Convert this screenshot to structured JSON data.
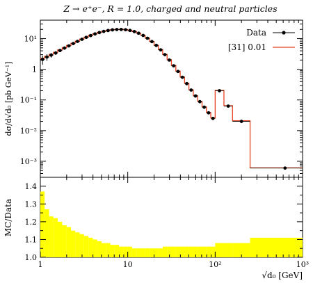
{
  "chart_data": [
    {
      "type": "line",
      "title": "Z → e⁺e⁻, R = 1.0, charged and neutral particles",
      "xlabel": "√d₀ [GeV]",
      "ylabel": "dσ/d√d₀ [pb GeV⁻¹]",
      "xscale": "log",
      "yscale": "log",
      "xlim": [
        1,
        1000
      ],
      "ylim": [
        0.0003,
        40
      ],
      "legend_position": "top-right",
      "legend": [
        {
          "label": "Data",
          "color": "#000000",
          "marker": "point-with-errorbar"
        },
        {
          "label": "[31] 0.01",
          "color": "#e8411f",
          "marker": "step-line"
        }
      ],
      "x_ticks": [
        {
          "value": 1,
          "label": "1"
        },
        {
          "value": 10,
          "label": "10"
        },
        {
          "value": 100,
          "label": "10²"
        },
        {
          "value": 1000,
          "label": "10³"
        }
      ],
      "y_ticks": [
        {
          "value": 0.001,
          "label": "10⁻³"
        },
        {
          "value": 0.01,
          "label": "10⁻²"
        },
        {
          "value": 0.1,
          "label": "10⁻¹"
        },
        {
          "value": 1,
          "label": "1"
        },
        {
          "value": 10,
          "label": "10¹"
        }
      ],
      "bin_edges": [
        1.0,
        1.12,
        1.26,
        1.41,
        1.58,
        1.78,
        2.0,
        2.24,
        2.51,
        2.82,
        3.16,
        3.55,
        3.98,
        4.47,
        5.01,
        5.62,
        6.31,
        7.08,
        7.94,
        8.91,
        10.0,
        11.2,
        12.6,
        14.1,
        15.8,
        17.8,
        20.0,
        22.4,
        25.1,
        28.2,
        31.6,
        35.5,
        39.8,
        44.7,
        50.1,
        56.2,
        63.1,
        70.8,
        79.4,
        89.1,
        100.0,
        126.0,
        158.0,
        251.0,
        1000.0
      ],
      "series": [
        {
          "name": "Data",
          "x": [
            1.06,
            1.19,
            1.33,
            1.5,
            1.68,
            1.89,
            2.12,
            2.38,
            2.66,
            2.99,
            3.35,
            3.76,
            4.22,
            4.73,
            5.31,
            5.96,
            6.68,
            7.5,
            8.41,
            9.44,
            10.6,
            11.9,
            13.3,
            15.0,
            16.8,
            18.9,
            21.2,
            23.8,
            26.6,
            29.9,
            33.5,
            37.6,
            42.2,
            47.3,
            53.1,
            59.6,
            66.8,
            75.0,
            84.1,
            94.4,
            112.0,
            141.0,
            200.0,
            630.0
          ],
          "y": [
            2.1,
            2.5,
            2.9,
            3.4,
            4.1,
            4.9,
            5.8,
            6.9,
            8.1,
            9.5,
            11.0,
            12.6,
            14.2,
            15.8,
            17.2,
            18.4,
            19.3,
            19.8,
            19.9,
            19.5,
            18.5,
            17.0,
            15.0,
            12.7,
            10.3,
            8.0,
            6.0,
            4.3,
            3.0,
            2.0,
            1.3,
            0.85,
            0.55,
            0.34,
            0.21,
            0.135,
            0.088,
            0.058,
            0.038,
            0.025,
            0.2,
            0.063,
            0.02,
            0.0006
          ],
          "y_err": [
            0.7,
            0.6,
            0.5,
            0.45,
            0.4,
            0.35,
            0.35,
            0.35,
            0.35,
            0.35,
            0.35,
            0.35,
            0.35,
            0.35,
            0.35,
            0.35,
            0.35,
            0.35,
            0.35,
            0.35,
            0.35,
            0.35,
            0.35,
            0.35,
            0.3,
            0.3,
            0.25,
            0.2,
            0.15,
            0.1,
            0.06,
            0.04,
            0.025,
            0.015,
            0.01,
            0.006,
            0.004,
            0.003,
            0.002,
            0.0015,
            0.01,
            0.004,
            0.001,
            4e-05
          ]
        },
        {
          "name": "[31] 0.01",
          "step_values": [
            2.3,
            2.7,
            3.1,
            3.6,
            4.3,
            5.1,
            6.0,
            7.1,
            8.3,
            9.7,
            11.2,
            12.8,
            14.4,
            16.0,
            17.4,
            18.6,
            19.5,
            20.0,
            20.1,
            19.7,
            18.6,
            17.1,
            15.1,
            12.8,
            10.4,
            8.1,
            6.1,
            4.4,
            3.05,
            2.05,
            1.33,
            0.87,
            0.56,
            0.35,
            0.215,
            0.138,
            0.09,
            0.06,
            0.039,
            0.026,
            0.205,
            0.065,
            0.021,
            0.00061
          ]
        }
      ]
    },
    {
      "type": "area",
      "ylabel": "MC/Data",
      "xlabel": "√d₀ [GeV]",
      "xscale": "log",
      "xlim": [
        1,
        1000
      ],
      "ylim": [
        1.0,
        1.45
      ],
      "x_ticks": [
        {
          "value": 1,
          "label": "1"
        },
        {
          "value": 10,
          "label": "10"
        },
        {
          "value": 100,
          "label": "10²"
        },
        {
          "value": 1000,
          "label": "10³"
        }
      ],
      "y_ticks": [
        {
          "value": 1.0,
          "label": "1.0"
        },
        {
          "value": 1.1,
          "label": "1.1"
        },
        {
          "value": 1.2,
          "label": "1.2"
        },
        {
          "value": 1.3,
          "label": "1.3"
        },
        {
          "value": 1.4,
          "label": "1.4"
        }
      ],
      "band_color": "#ffff00",
      "band_edges": [
        1.0,
        1.12,
        1.26,
        1.41,
        1.58,
        1.78,
        2.0,
        2.24,
        2.51,
        2.82,
        3.16,
        3.55,
        3.98,
        4.47,
        5.01,
        5.62,
        6.31,
        7.08,
        7.94,
        8.91,
        10.0,
        11.2,
        12.6,
        14.1,
        15.8,
        17.8,
        20.0,
        22.4,
        25.1,
        28.2,
        31.6,
        35.5,
        39.8,
        44.7,
        50.1,
        56.2,
        63.1,
        70.8,
        79.4,
        89.1,
        100.0,
        126.0,
        158.0,
        251.0,
        1000.0
      ],
      "band_upper": [
        1.37,
        1.27,
        1.23,
        1.22,
        1.2,
        1.18,
        1.17,
        1.15,
        1.14,
        1.13,
        1.12,
        1.11,
        1.1,
        1.09,
        1.08,
        1.08,
        1.07,
        1.07,
        1.06,
        1.06,
        1.06,
        1.05,
        1.05,
        1.05,
        1.05,
        1.05,
        1.05,
        1.05,
        1.06,
        1.06,
        1.06,
        1.06,
        1.06,
        1.06,
        1.06,
        1.06,
        1.06,
        1.06,
        1.06,
        1.06,
        1.08,
        1.08,
        1.08,
        1.11
      ]
    }
  ]
}
